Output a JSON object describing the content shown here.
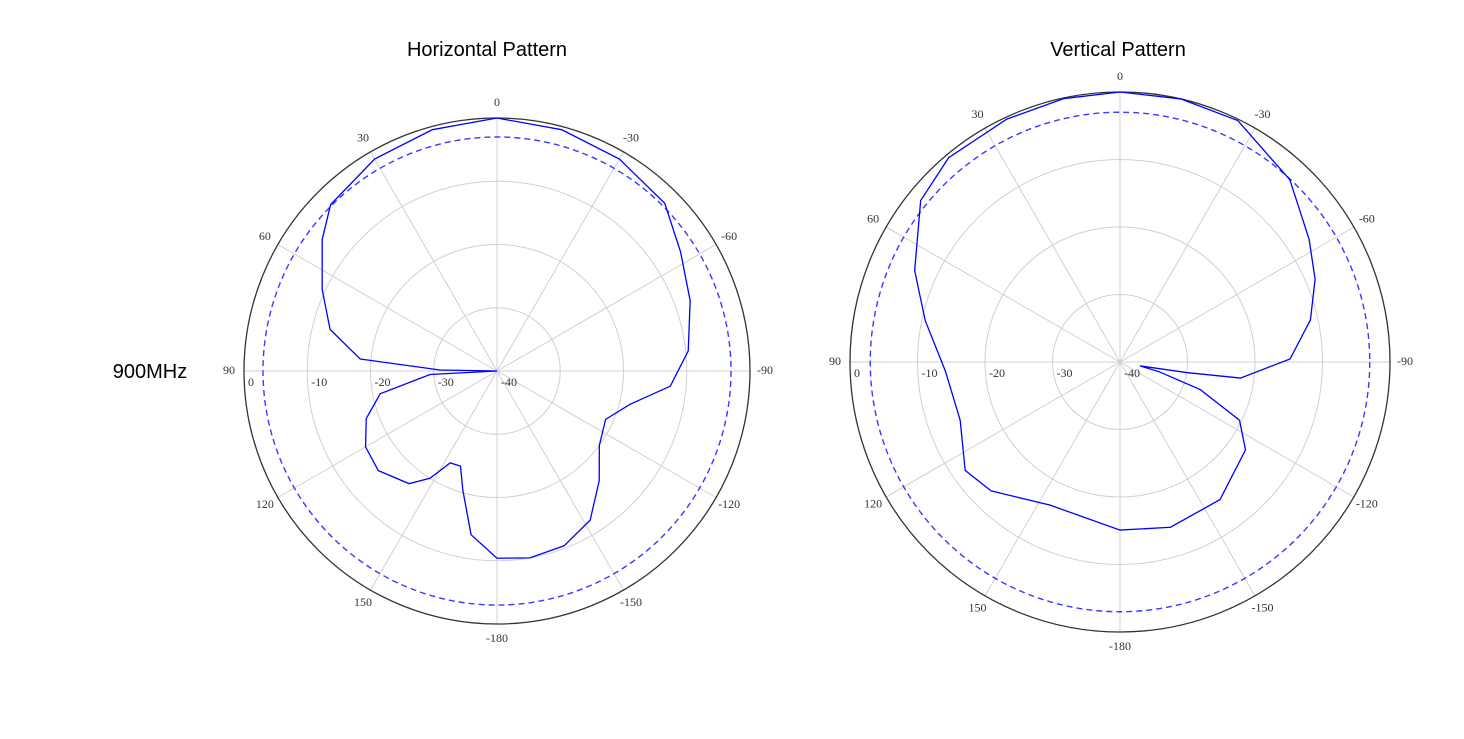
{
  "row_label": "900MHz",
  "chart_data": [
    {
      "type": "polar",
      "title": "Horizontal Pattern",
      "theta": [
        0,
        15,
        30,
        45,
        53,
        65,
        76,
        85,
        89,
        90,
        93,
        101,
        110,
        120,
        130,
        142,
        148,
        153,
        159,
        164,
        171,
        180,
        -170,
        -159,
        -148,
        -137,
        -126,
        -114,
        -104,
        -95,
        -84,
        -70,
        -57,
        -45,
        -30,
        -15
      ],
      "series": [
        {
          "color": "#0000ff",
          "values": [
            0,
            -0.5,
            -1.3,
            -2.8,
            -5.4,
            -9.5,
            -12.8,
            -18.3,
            -31,
            -40,
            -29.4,
            -21.2,
            -18,
            -16,
            -15.5,
            -17.4,
            -20,
            -23.7,
            -23.9,
            -20.4,
            -13.8,
            -10.4,
            -10,
            -10.4,
            -12.2,
            -16.3,
            -20,
            -21.2,
            -18.3,
            -12.5,
            -9.6,
            -7.5,
            -5.4,
            -2.5,
            -1.3,
            -0.5
          ]
        }
      ],
      "rlim": [
        -40,
        0
      ],
      "rticks": [
        0,
        -10,
        -20,
        -30,
        -40
      ],
      "thetaticks": [
        0,
        30,
        60,
        90,
        120,
        150,
        -180,
        -150,
        -120,
        -90,
        -60,
        -30
      ],
      "reference_level": -3,
      "reference_color": "#3a3aff",
      "grid": true
    },
    {
      "type": "polar",
      "title": "Vertical Pattern",
      "theta": [
        0,
        12,
        25,
        40,
        51,
        66,
        78,
        93,
        110,
        125,
        135,
        154,
        180,
        -163,
        -144,
        -125,
        -116,
        -109,
        -104,
        -101,
        -99,
        -97.6,
        -89,
        -77.5,
        -67,
        -57,
        -43,
        -26,
        -13
      ],
      "series": [
        {
          "color": "#0000ff",
          "values": [
            0,
            -0.1,
            -0.3,
            -0.5,
            -2,
            -6.7,
            -10.5,
            -14.1,
            -14.8,
            -12,
            -13,
            -16.4,
            -15.1,
            -14.4,
            -14.8,
            -17.3,
            -20.3,
            -27.4,
            -34,
            -37,
            -30,
            -22,
            -14.8,
            -11.1,
            -8.6,
            -6.6,
            -3.1,
            -0.2,
            0
          ]
        }
      ],
      "rlim": [
        -40,
        0
      ],
      "rticks": [
        0,
        -10,
        -20,
        -30,
        -40
      ],
      "thetaticks": [
        0,
        30,
        60,
        90,
        120,
        150,
        -180,
        -150,
        -120,
        -90,
        -60,
        -30
      ],
      "reference_level": -3,
      "reference_color": "#3a3aff",
      "grid": true
    }
  ]
}
